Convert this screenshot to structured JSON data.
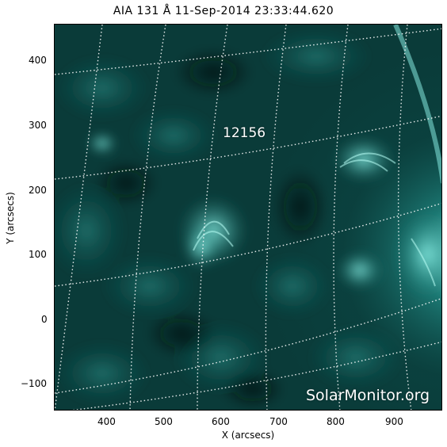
{
  "title": "AIA 131 Å 11-Sep-2014 23:33:44.620",
  "x_axis": {
    "label": "X (arcsecs)",
    "ticks": [
      "400",
      "500",
      "600",
      "700",
      "800",
      "900"
    ]
  },
  "y_axis": {
    "label": "Y (arcsecs)",
    "ticks": [
      "400",
      "300",
      "200",
      "100",
      "0",
      "−100"
    ]
  },
  "region_label": "12156",
  "watermark": "SolarMonitor.org",
  "colors": {
    "sun_dark": "#03201f",
    "sun_mid": "#0d5653",
    "sun_bright": "#7ff5ea",
    "grid": "#ffffff"
  }
}
